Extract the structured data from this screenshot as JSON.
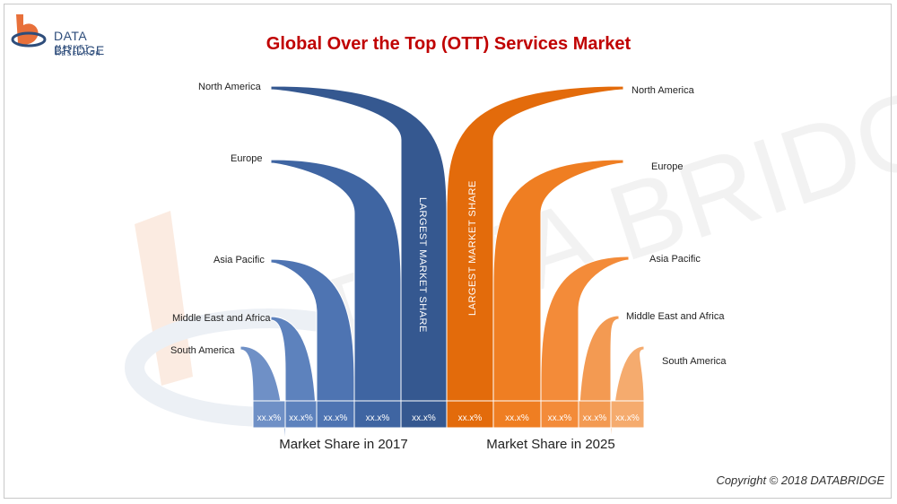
{
  "brand": {
    "name": "DATA BRIDGE",
    "tagline": "MARKET RESEARCH"
  },
  "title": "Global Over the Top (OTT) Services Market",
  "copyright": "Copyright © 2018 DATABRIDGE",
  "chart_data": {
    "type": "bar",
    "title": "Global Over the Top (OTT) Services Market",
    "series": [
      {
        "name": "Market Share in 2017",
        "color": "#3a5f9a",
        "categories": [
          "South America",
          "Middle East and Africa",
          "Asia Pacific",
          "Europe",
          "North America"
        ],
        "values": [
          "xx.x%",
          "xx.x%",
          "xx.x%",
          "xx.x%",
          "xx.x%"
        ],
        "annotation": "LARGEST MARKET SHARE"
      },
      {
        "name": "Market Share in 2025",
        "color": "#e8700a",
        "categories": [
          "North America",
          "Europe",
          "Asia Pacific",
          "Middle East and Africa",
          "South America"
        ],
        "values": [
          "xx.x%",
          "xx.x%",
          "xx.x%",
          "xx.x%",
          "xx.x%"
        ],
        "annotation": "LARGEST MARKET SHARE"
      }
    ]
  }
}
